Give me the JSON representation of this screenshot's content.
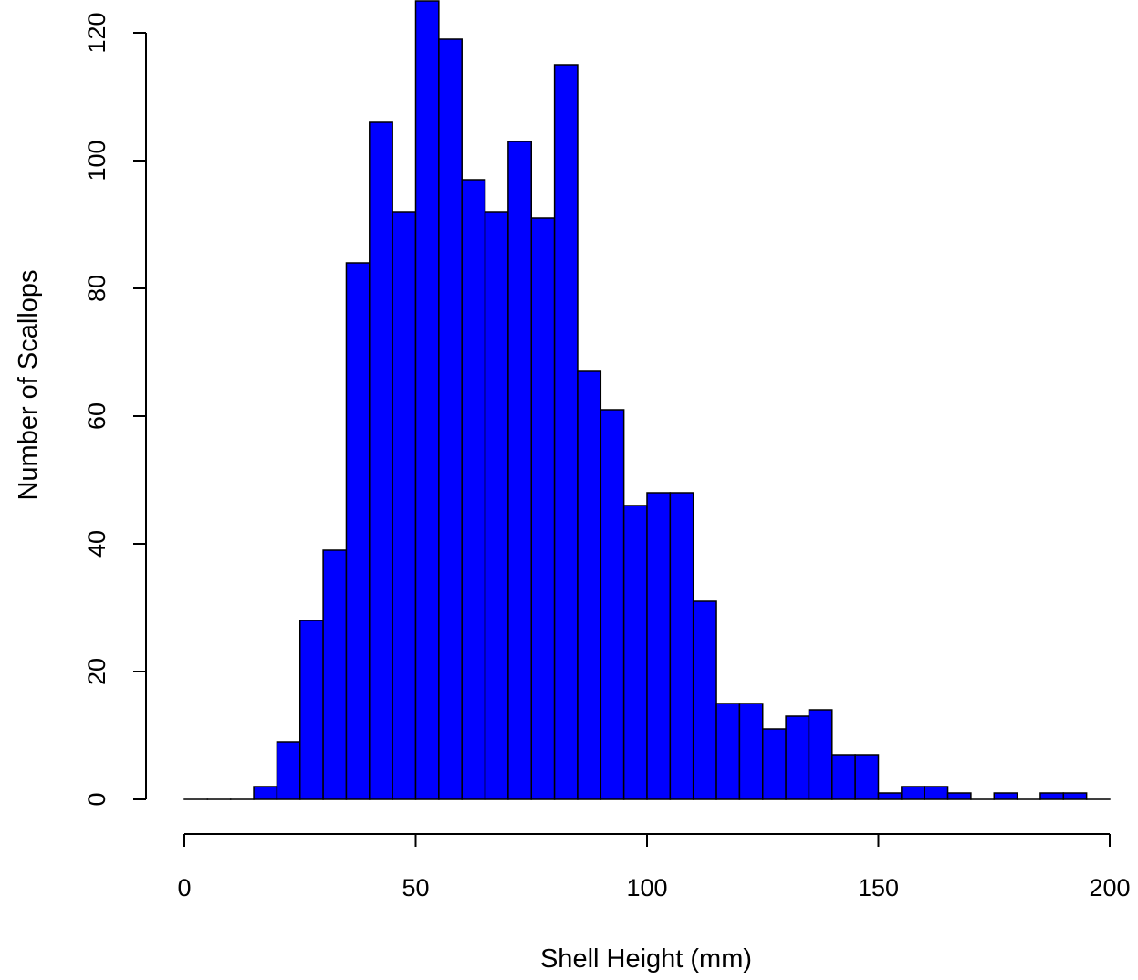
{
  "chart_data": {
    "type": "bar",
    "title": "",
    "xlabel": "Shell Height (mm)",
    "ylabel": "Number of Scallops",
    "bin_width": 5,
    "bin_starts": [
      0,
      5,
      10,
      15,
      20,
      25,
      30,
      35,
      40,
      45,
      50,
      55,
      60,
      65,
      70,
      75,
      80,
      85,
      90,
      95,
      100,
      105,
      110,
      115,
      120,
      125,
      130,
      135,
      140,
      145,
      150,
      155,
      160,
      165,
      170,
      175,
      180,
      185,
      190,
      195
    ],
    "values": [
      0,
      0,
      0,
      2,
      9,
      28,
      39,
      84,
      106,
      92,
      125,
      119,
      97,
      92,
      103,
      91,
      115,
      67,
      61,
      46,
      48,
      48,
      31,
      15,
      15,
      11,
      13,
      14,
      7,
      7,
      1,
      2,
      2,
      1,
      0,
      1,
      0,
      1,
      1,
      0
    ],
    "xlim": [
      0,
      200
    ],
    "ylim": [
      0,
      125
    ],
    "x_ticks": [
      "0",
      "50",
      "100",
      "150",
      "200"
    ],
    "y_ticks": [
      "0",
      "20",
      "40",
      "60",
      "80",
      "100",
      "120"
    ],
    "bar_color": "#0000ff",
    "edge_color": "#000000",
    "grid": false
  }
}
